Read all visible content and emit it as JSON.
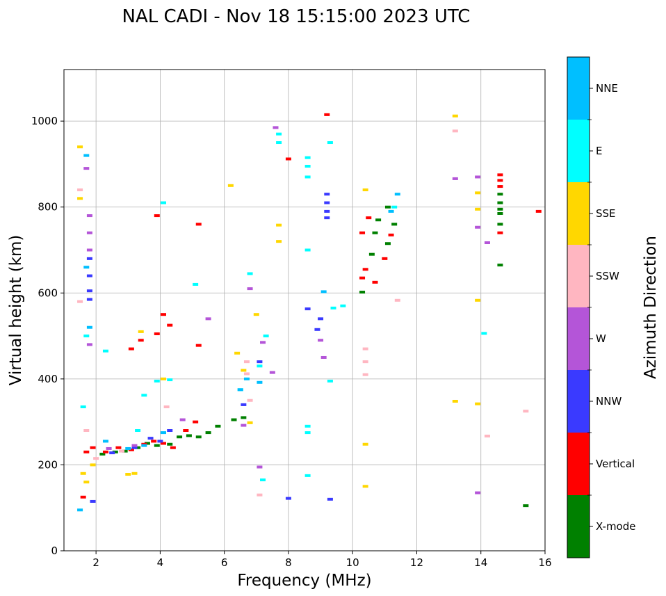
{
  "chart_data": {
    "type": "scatter",
    "title": "NAL CADI - Nov 18 15:15:00 2023 UTC",
    "xlabel": "Frequency (MHz)",
    "ylabel": "Virtual height (km)",
    "xlim": [
      1,
      16
    ],
    "ylim": [
      0,
      1120
    ],
    "xticks": [
      2,
      4,
      6,
      8,
      10,
      12,
      14,
      16
    ],
    "yticks": [
      0,
      200,
      400,
      600,
      800,
      1000
    ],
    "grid": true,
    "colorbar": {
      "label": "Azimuth Direction",
      "position": "right",
      "categories": [
        {
          "name": "X-mode",
          "color": "#008000"
        },
        {
          "name": "Vertical",
          "color": "#ff0000"
        },
        {
          "name": "NNW",
          "color": "#3a3aff"
        },
        {
          "name": "W",
          "color": "#b455d8"
        },
        {
          "name": "SSW",
          "color": "#ffb6c1"
        },
        {
          "name": "SSE",
          "color": "#ffd700"
        },
        {
          "name": "E",
          "color": "#00ffff"
        },
        {
          "name": "NNE",
          "color": "#00bfff"
        }
      ]
    },
    "series": [
      {
        "name": "X-mode",
        "points": [
          [
            2.2,
            225
          ],
          [
            2.6,
            230
          ],
          [
            2.9,
            232
          ],
          [
            3.3,
            240
          ],
          [
            3.6,
            250
          ],
          [
            3.9,
            245
          ],
          [
            4.3,
            248
          ],
          [
            4.6,
            265
          ],
          [
            4.9,
            268
          ],
          [
            5.2,
            265
          ],
          [
            5.5,
            275
          ],
          [
            5.8,
            290
          ],
          [
            6.3,
            305
          ],
          [
            6.6,
            310
          ],
          [
            10.3,
            602
          ],
          [
            10.6,
            690
          ],
          [
            10.7,
            740
          ],
          [
            10.8,
            770
          ],
          [
            11.1,
            715
          ],
          [
            11.1,
            800
          ],
          [
            11.3,
            760
          ],
          [
            14.6,
            795
          ],
          [
            14.6,
            785
          ],
          [
            14.6,
            810
          ],
          [
            14.6,
            830
          ],
          [
            14.6,
            760
          ],
          [
            14.6,
            665
          ],
          [
            15.4,
            105
          ]
        ]
      },
      {
        "name": "Vertical",
        "points": [
          [
            1.6,
            125
          ],
          [
            1.7,
            230
          ],
          [
            1.9,
            240
          ],
          [
            2.3,
            230
          ],
          [
            2.7,
            240
          ],
          [
            3.1,
            235
          ],
          [
            3.5,
            248
          ],
          [
            3.8,
            255
          ],
          [
            4.1,
            250
          ],
          [
            4.4,
            240
          ],
          [
            4.8,
            280
          ],
          [
            5.1,
            300
          ],
          [
            3.1,
            470
          ],
          [
            3.4,
            490
          ],
          [
            3.9,
            505
          ],
          [
            4.1,
            550
          ],
          [
            4.3,
            525
          ],
          [
            5.2,
            760
          ],
          [
            5.2,
            478
          ],
          [
            3.9,
            780
          ],
          [
            9.2,
            1015
          ],
          [
            8.0,
            912
          ],
          [
            10.3,
            740
          ],
          [
            10.3,
            635
          ],
          [
            10.4,
            655
          ],
          [
            10.5,
            775
          ],
          [
            10.7,
            625
          ],
          [
            11.0,
            680
          ],
          [
            11.2,
            735
          ],
          [
            14.6,
            875
          ],
          [
            14.6,
            862
          ],
          [
            14.6,
            848
          ],
          [
            14.6,
            740
          ],
          [
            15.8,
            790
          ]
        ]
      },
      {
        "name": "NNW",
        "points": [
          [
            1.9,
            115
          ],
          [
            2.5,
            228
          ],
          [
            3.2,
            240
          ],
          [
            3.7,
            262
          ],
          [
            4.0,
            255
          ],
          [
            4.3,
            280
          ],
          [
            6.6,
            340
          ],
          [
            7.1,
            440
          ],
          [
            1.8,
            680
          ],
          [
            1.8,
            640
          ],
          [
            1.8,
            605
          ],
          [
            1.8,
            585
          ],
          [
            8.6,
            563
          ],
          [
            8.9,
            515
          ],
          [
            9.0,
            540
          ],
          [
            9.2,
            830
          ],
          [
            9.2,
            810
          ],
          [
            9.2,
            790
          ],
          [
            9.2,
            775
          ],
          [
            9.3,
            120
          ],
          [
            8.0,
            122
          ]
        ]
      },
      {
        "name": "W",
        "points": [
          [
            1.7,
            890
          ],
          [
            1.8,
            780
          ],
          [
            1.8,
            740
          ],
          [
            1.8,
            700
          ],
          [
            1.8,
            480
          ],
          [
            2.4,
            238
          ],
          [
            3.2,
            245
          ],
          [
            4.7,
            305
          ],
          [
            5.5,
            540
          ],
          [
            6.6,
            292
          ],
          [
            6.8,
            610
          ],
          [
            7.2,
            485
          ],
          [
            7.5,
            415
          ],
          [
            7.6,
            985
          ],
          [
            9.1,
            450
          ],
          [
            9.0,
            490
          ],
          [
            13.2,
            866
          ],
          [
            13.9,
            870
          ],
          [
            13.9,
            753
          ],
          [
            14.2,
            717
          ],
          [
            13.9,
            135
          ],
          [
            7.1,
            195
          ]
        ]
      },
      {
        "name": "SSW",
        "points": [
          [
            1.5,
            580
          ],
          [
            1.5,
            840
          ],
          [
            1.7,
            280
          ],
          [
            2.0,
            215
          ],
          [
            2.8,
            232
          ],
          [
            4.2,
            335
          ],
          [
            6.7,
            440
          ],
          [
            6.7,
            412
          ],
          [
            6.8,
            350
          ],
          [
            10.4,
            470
          ],
          [
            10.4,
            440
          ],
          [
            10.4,
            410
          ],
          [
            11.4,
            583
          ],
          [
            13.2,
            977
          ],
          [
            14.2,
            267
          ],
          [
            15.4,
            325
          ],
          [
            7.1,
            130
          ]
        ]
      },
      {
        "name": "SSE",
        "points": [
          [
            1.5,
            940
          ],
          [
            1.5,
            820
          ],
          [
            1.6,
            180
          ],
          [
            1.7,
            160
          ],
          [
            1.9,
            200
          ],
          [
            3.0,
            178
          ],
          [
            3.2,
            180
          ],
          [
            3.4,
            510
          ],
          [
            4.1,
            400
          ],
          [
            6.2,
            850
          ],
          [
            6.4,
            460
          ],
          [
            6.6,
            420
          ],
          [
            6.8,
            298
          ],
          [
            7.0,
            550
          ],
          [
            7.7,
            758
          ],
          [
            7.7,
            720
          ],
          [
            10.4,
            840
          ],
          [
            10.4,
            248
          ],
          [
            10.4,
            150
          ],
          [
            13.2,
            1012
          ],
          [
            13.2,
            348
          ],
          [
            13.9,
            833
          ],
          [
            13.9,
            795
          ],
          [
            13.9,
            583
          ],
          [
            13.9,
            342
          ]
        ]
      },
      {
        "name": "E",
        "points": [
          [
            1.6,
            335
          ],
          [
            1.7,
            500
          ],
          [
            2.3,
            465
          ],
          [
            3.3,
            280
          ],
          [
            3.5,
            362
          ],
          [
            4.1,
            810
          ],
          [
            4.3,
            398
          ],
          [
            5.1,
            620
          ],
          [
            6.5,
            375
          ],
          [
            6.8,
            645
          ],
          [
            7.1,
            430
          ],
          [
            7.3,
            500
          ],
          [
            7.7,
            950
          ],
          [
            7.7,
            970
          ],
          [
            8.6,
            915
          ],
          [
            8.6,
            895
          ],
          [
            8.6,
            870
          ],
          [
            8.6,
            700
          ],
          [
            8.6,
            290
          ],
          [
            8.6,
            275
          ],
          [
            8.6,
            175
          ],
          [
            9.3,
            950
          ],
          [
            9.3,
            395
          ],
          [
            9.4,
            565
          ],
          [
            9.7,
            570
          ],
          [
            11.3,
            800
          ],
          [
            14.1,
            506
          ],
          [
            7.2,
            165
          ],
          [
            3.9,
            395
          ]
        ]
      },
      {
        "name": "NNE",
        "points": [
          [
            1.5,
            95
          ],
          [
            1.7,
            920
          ],
          [
            1.7,
            660
          ],
          [
            1.8,
            520
          ],
          [
            2.3,
            255
          ],
          [
            3.0,
            238
          ],
          [
            3.5,
            245
          ],
          [
            4.1,
            275
          ],
          [
            6.5,
            375
          ],
          [
            6.7,
            400
          ],
          [
            7.1,
            392
          ],
          [
            9.1,
            603
          ],
          [
            11.2,
            790
          ],
          [
            11.4,
            830
          ]
        ]
      }
    ]
  }
}
